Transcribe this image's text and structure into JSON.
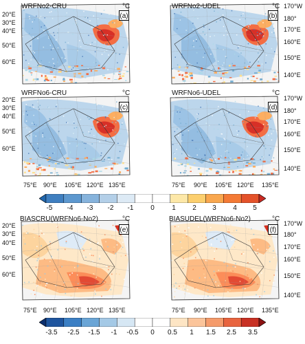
{
  "panels": [
    {
      "title": "WRFNo2-CRU",
      "label": "(a)",
      "unit": "°C",
      "pattern": "diff"
    },
    {
      "title": "WRFNo2-UDEL",
      "label": "(b)",
      "unit": "°C",
      "pattern": "diff"
    },
    {
      "title": "WRFNo6-CRU",
      "label": "(c)",
      "unit": "°C",
      "pattern": "diff"
    },
    {
      "title": "WRFNo6-UDEL",
      "label": "(d)",
      "unit": "°C",
      "pattern": "diff"
    },
    {
      "title": "BIASCRU(WRFNo6-No2)",
      "label": "(e)",
      "unit": "°C",
      "pattern": "bias"
    },
    {
      "title": "BIASUDEL(WRFNo6-No2)",
      "label": "(f)",
      "unit": "°C",
      "pattern": "bias"
    }
  ],
  "axes": {
    "lat_left": [
      "20°E",
      "30°E",
      "40°E",
      "50°E",
      "60°E"
    ],
    "lat_right": [
      "170°W",
      "180°",
      "170°E",
      "160°E",
      "150°E",
      "140°E"
    ],
    "lon": [
      "75°E",
      "90°E",
      "105°E",
      "120°E",
      "135°E"
    ]
  },
  "colorbar1": {
    "ticks": [
      "-5",
      "-4",
      "-3",
      "-2",
      "-1",
      "0",
      "1",
      "2",
      "3",
      "4",
      "5"
    ],
    "colors": [
      "#2166ac",
      "#3f7fc0",
      "#5d98cf",
      "#86b3dc",
      "#b3cfe8",
      "#ddeaf5",
      "#ffffff",
      "#ffffff",
      "#fde8a8",
      "#fccf6e",
      "#f9a74e",
      "#f47a35",
      "#e4522a",
      "#c92a22"
    ]
  },
  "colorbar2": {
    "ticks": [
      "-3.5",
      "-2.5",
      "-1.5",
      "-1",
      "-0.5",
      "0",
      "0.5",
      "1",
      "1.5",
      "2.5",
      "3.5"
    ],
    "colors": [
      "#0c2f6e",
      "#1f559e",
      "#3b7fc4",
      "#6aa5d6",
      "#a4c9e6",
      "#d6e7f4",
      "#ffffff",
      "#ffffff",
      "#fde5c4",
      "#fbc49a",
      "#f59b6b",
      "#e8643f",
      "#c83124",
      "#8b1212"
    ]
  }
}
